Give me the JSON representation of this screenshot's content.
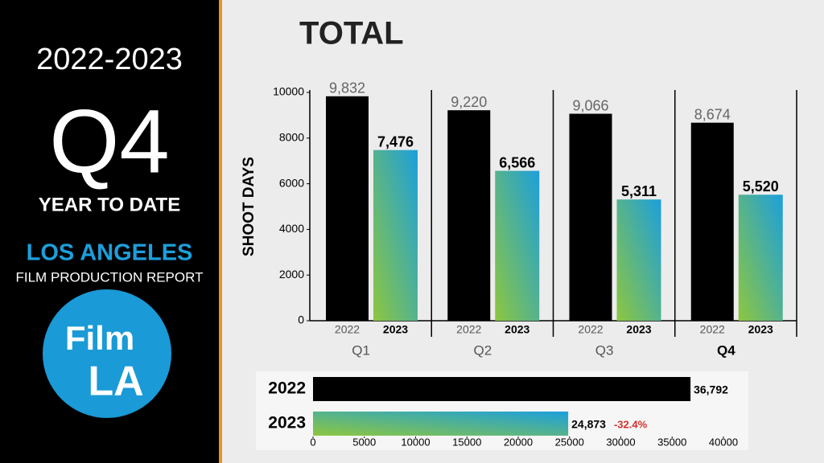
{
  "sidebar": {
    "years": "2022-2023",
    "quarter": "Q4",
    "subtitle": "YEAR TO DATE",
    "city": "LOS ANGELES",
    "report": "FILM PRODUCTION REPORT",
    "logo_line1": "Film",
    "logo_line2": "LA"
  },
  "chart_data": [
    {
      "type": "bar",
      "title": "TOTAL",
      "y_label": "SHOOT DAYS",
      "categories": [
        "Q1",
        "Q2",
        "Q3",
        "Q4"
      ],
      "series": [
        {
          "name": "2022",
          "color": "#000000",
          "values": [
            9832,
            9220,
            9066,
            8674
          ],
          "value_labels": [
            "9,832",
            "9,220",
            "9,066",
            "8,674"
          ]
        },
        {
          "name": "2023",
          "colors": [
            "#8dc63f",
            "#1c9fdc"
          ],
          "values": [
            7476,
            6566,
            5311,
            5520
          ],
          "value_labels": [
            "7,476",
            "6,566",
            "5,311",
            "5,520"
          ]
        }
      ],
      "ylim": [
        0,
        10000
      ],
      "yticks": [
        0,
        2000,
        4000,
        6000,
        8000,
        10000
      ]
    },
    {
      "type": "hbar",
      "categories": [
        "2022",
        "2023"
      ],
      "values": [
        36792,
        24873
      ],
      "value_labels": [
        "36,792",
        "24,873"
      ],
      "colors": [
        "#000000",
        [
          "#8dc63f",
          "#1c9fdc"
        ]
      ],
      "annotation": "-32.4%",
      "xlim": [
        0,
        40000
      ],
      "xticks": [
        0,
        5000,
        10000,
        15000,
        20000,
        25000,
        30000,
        35000,
        40000
      ]
    }
  ]
}
